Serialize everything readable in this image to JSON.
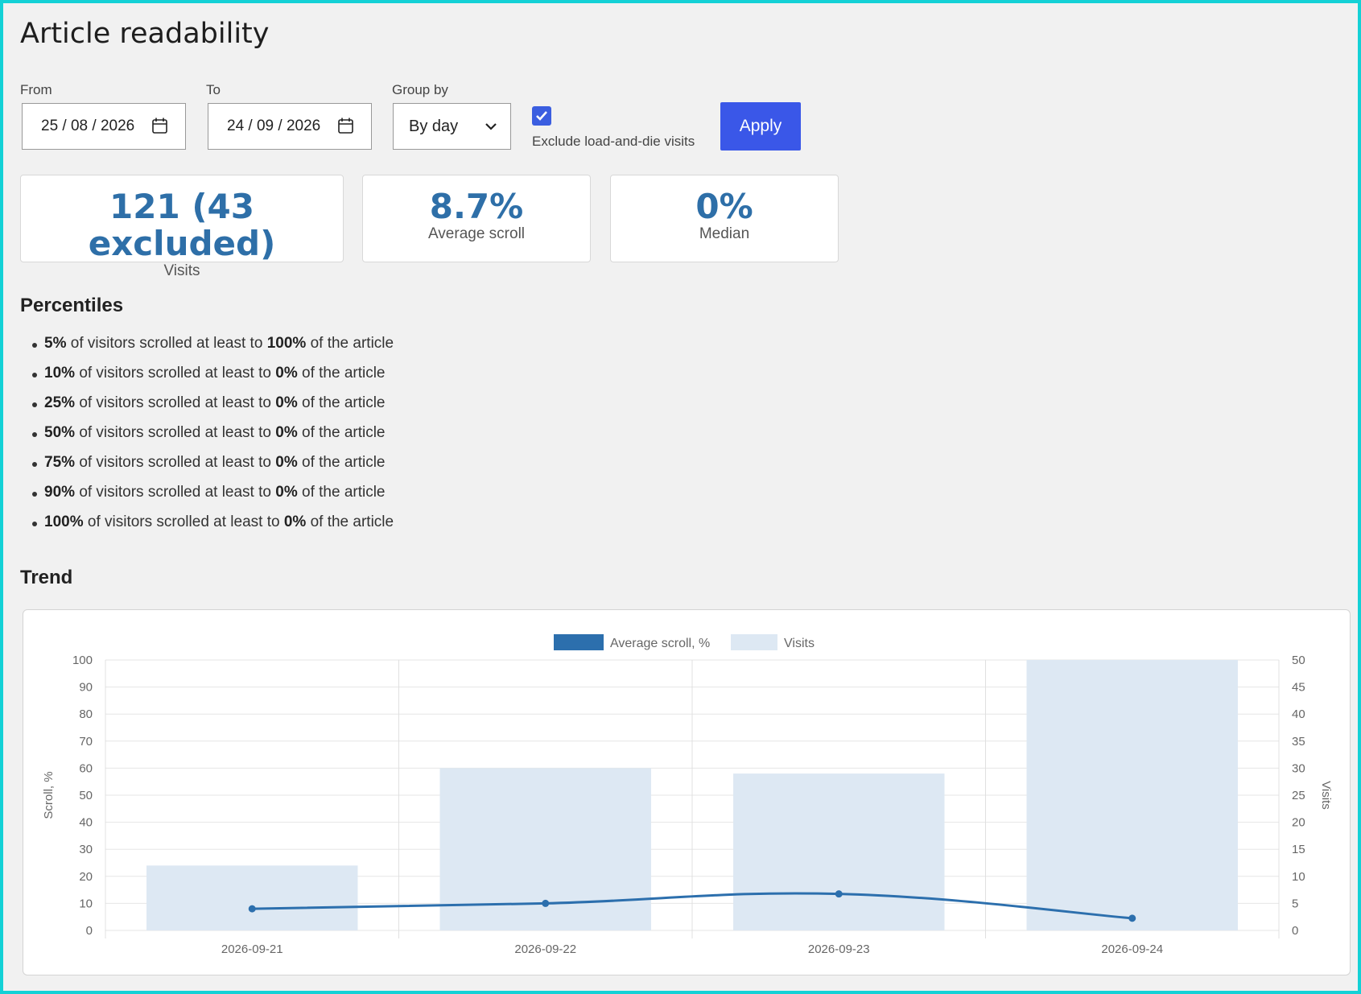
{
  "page": {
    "title": "Article readability"
  },
  "filters": {
    "from_label": "From",
    "from_value": "25 / 08 / 2026",
    "to_label": "To",
    "to_value": "24 / 09 / 2026",
    "group_label": "Group by",
    "group_value": "By day",
    "exclude_label": "Exclude load-and-die visits",
    "exclude_checked": true,
    "apply_label": "Apply"
  },
  "stats": [
    {
      "value": "121 (43 excluded)",
      "label": "Visits"
    },
    {
      "value": "8.7%",
      "label": "Average scroll"
    },
    {
      "value": "0%",
      "label": "Median"
    }
  ],
  "percentiles": {
    "title": "Percentiles",
    "middle_text": "of visitors scrolled at least to",
    "end_text": "of the article",
    "items": [
      {
        "pct": "5%",
        "scroll": "100%"
      },
      {
        "pct": "10%",
        "scroll": "0%"
      },
      {
        "pct": "25%",
        "scroll": "0%"
      },
      {
        "pct": "50%",
        "scroll": "0%"
      },
      {
        "pct": "75%",
        "scroll": "0%"
      },
      {
        "pct": "90%",
        "scroll": "0%"
      },
      {
        "pct": "100%",
        "scroll": "0%"
      }
    ]
  },
  "trend": {
    "title": "Trend"
  },
  "chart_data": {
    "type": "bar",
    "title": "",
    "categories": [
      "2026-09-21",
      "2026-09-22",
      "2026-09-23",
      "2026-09-24"
    ],
    "series": [
      {
        "name": "Average scroll, %",
        "type": "line",
        "axis": "left",
        "color": "#2c6fad",
        "values": [
          8,
          10,
          13.5,
          4.5
        ]
      },
      {
        "name": "Visits",
        "type": "bar",
        "axis": "right",
        "color": "#dde8f3",
        "values": [
          12,
          30,
          29,
          50
        ]
      }
    ],
    "ylabel": "Scroll, %",
    "y2label": "Visits",
    "ylim": [
      0,
      100
    ],
    "y2lim": [
      0,
      50
    ],
    "yticks": [
      0,
      10,
      20,
      30,
      40,
      50,
      60,
      70,
      80,
      90,
      100
    ],
    "y2ticks": [
      0,
      5,
      10,
      15,
      20,
      25,
      30,
      35,
      40,
      45,
      50
    ],
    "grid": true,
    "legend": "top-center"
  }
}
